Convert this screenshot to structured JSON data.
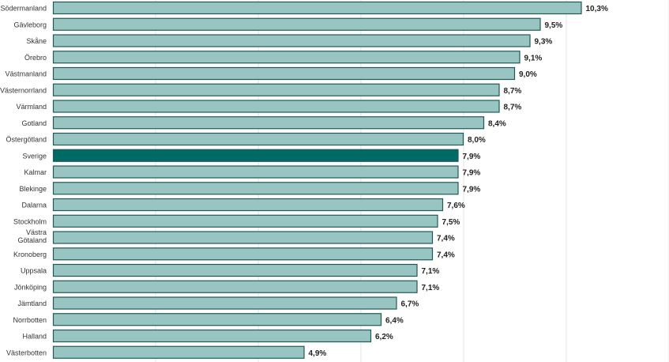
{
  "chart_data": {
    "type": "bar",
    "orientation": "horizontal",
    "categories": [
      "Södermanland",
      "Gävleborg",
      "Skåne",
      "Örebro",
      "Västmanland",
      "Västernorrland",
      "Värmland",
      "Gotland",
      "Östergötland",
      "Sverige",
      "Kalmar",
      "Blekinge",
      "Dalarna",
      "Stockholm",
      "Västra Götaland",
      "Kronoberg",
      "Uppsala",
      "Jönköping",
      "Jämtland",
      "Norrbotten",
      "Halland",
      "Västerbotten"
    ],
    "values": [
      10.3,
      9.5,
      9.3,
      9.1,
      9.0,
      8.7,
      8.7,
      8.4,
      8.0,
      7.9,
      7.9,
      7.9,
      7.6,
      7.5,
      7.4,
      7.4,
      7.1,
      7.1,
      6.7,
      6.4,
      6.2,
      4.9
    ],
    "value_labels": [
      "10,3%",
      "9,5%",
      "9,3%",
      "9,1%",
      "9,0%",
      "8,7%",
      "8,7%",
      "8,4%",
      "8,0%",
      "7,9%",
      "7,9%",
      "7,9%",
      "7,6%",
      "7,5%",
      "7,4%",
      "7,4%",
      "7,1%",
      "7,1%",
      "6,7%",
      "6,4%",
      "6,2%",
      "4,9%"
    ],
    "highlight": "Sverige",
    "xlim": [
      0,
      12
    ],
    "grid": true,
    "title": "",
    "xlabel": "",
    "ylabel": "",
    "colors": {
      "bar": "#98c5c1",
      "bar_stroke": "#1f5a57",
      "highlight": "#006a65",
      "grid": "#e3e3e3"
    }
  }
}
